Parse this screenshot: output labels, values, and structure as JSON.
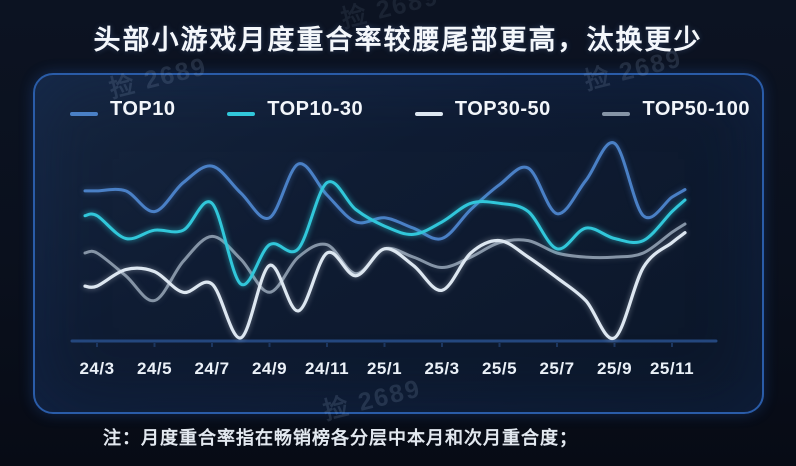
{
  "title": "头部小游戏月度重合率较腰尾部更高，汰换更少",
  "note": "注：月度重合率指在畅销榜各分层中本月和次月重合度；",
  "watermark": {
    "text": "捡 2689"
  },
  "legend": [
    {
      "label": "TOP10",
      "color": "#4a80c6"
    },
    {
      "label": "TOP10-30",
      "color": "#31c7da"
    },
    {
      "label": "TOP30-50",
      "color": "#dde7f1"
    },
    {
      "label": "TOP50-100",
      "color": "#8594a6"
    }
  ],
  "colors": {
    "panel_border": "#2a5ca8",
    "axis": "#24477e",
    "background": "#0a101d",
    "text": "#f4f7fb"
  },
  "chart_data": {
    "type": "line",
    "title": "头部小游戏月度重合率较腰尾部更高，汰换更少",
    "xlabel": "",
    "ylabel": "",
    "y_axis_note": "y axis hidden in source; values are estimated relative monthly overlap rates (0-100 scale)",
    "ylim": [
      0,
      100
    ],
    "grid": false,
    "legend_position": "top",
    "x": [
      "24/3",
      "24/4",
      "24/5",
      "24/6",
      "24/7",
      "24/8",
      "24/9",
      "24/10",
      "24/11",
      "24/12",
      "25/1",
      "25/2",
      "25/3",
      "25/4",
      "25/5",
      "25/6",
      "25/7",
      "25/8",
      "25/9",
      "25/10",
      "25/11"
    ],
    "x_tick_labels_shown": [
      "24/3",
      "24/5",
      "24/7",
      "24/9",
      "24/11",
      "25/1",
      "25/3",
      "25/5",
      "25/7",
      "25/9",
      "25/11"
    ],
    "series": [
      {
        "name": "TOP10",
        "color": "#4a80c6",
        "values": [
          73,
          73,
          63,
          77,
          85,
          72,
          60,
          86,
          71,
          58,
          60,
          55,
          50,
          64,
          76,
          84,
          62,
          78,
          96,
          61,
          70
        ]
      },
      {
        "name": "TOP10-30",
        "color": "#31c7da",
        "values": [
          61,
          50,
          54,
          54,
          67,
          28,
          47,
          45,
          77,
          64,
          56,
          52,
          58,
          67,
          67,
          63,
          45,
          55,
          50,
          49,
          63
        ]
      },
      {
        "name": "TOP30-50",
        "color": "#dde7f1",
        "values": [
          27,
          35,
          34,
          24,
          28,
          2,
          37,
          15,
          43,
          32,
          45,
          37,
          25,
          43,
          49,
          41,
          31,
          20,
          2,
          36,
          48
        ]
      },
      {
        "name": "TOP50-100",
        "color": "#8594a6",
        "values": [
          43,
          32,
          20,
          39,
          51,
          40,
          24,
          41,
          47,
          33,
          45,
          41,
          36,
          41,
          48,
          49,
          43,
          41,
          41,
          43,
          53
        ]
      }
    ]
  }
}
